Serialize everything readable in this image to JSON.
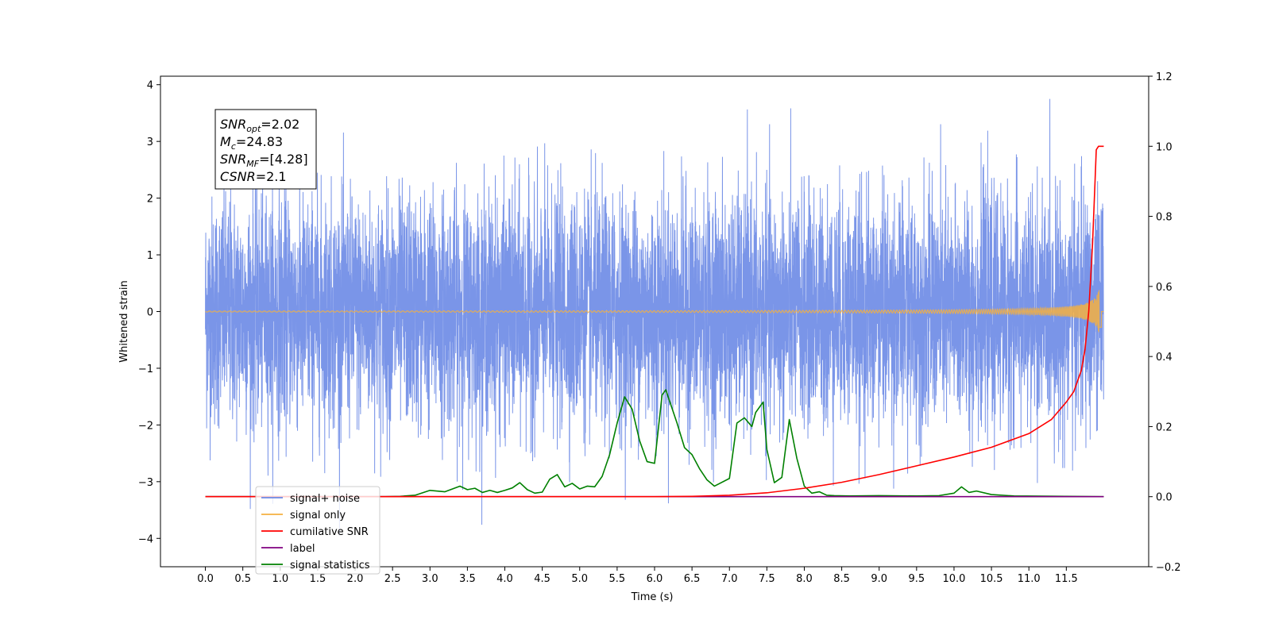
{
  "chart_data": {
    "type": "line",
    "title": "",
    "xlabel": "Time (s)",
    "ylabel": "Whitened strain",
    "y2label": "",
    "xlim": [
      -0.6,
      12.6
    ],
    "ylim": [
      -4.5,
      4.15
    ],
    "y2lim": [
      -0.2,
      1.2
    ],
    "x_ticks": [
      "0.0",
      "0.5",
      "1.0",
      "1.5",
      "2.0",
      "2.5",
      "3.0",
      "3.5",
      "4.0",
      "4.5",
      "5.0",
      "5.5",
      "6.0",
      "6.5",
      "7.0",
      "7.5",
      "8.0",
      "8.5",
      "9.0",
      "9.5",
      "10.0",
      "10.5",
      "11.0",
      "11.5"
    ],
    "y_ticks": [
      "−4",
      "−3",
      "−2",
      "−1",
      "0",
      "1",
      "2",
      "3",
      "4"
    ],
    "y2_ticks": [
      "−0.2",
      "0.0",
      "0.2",
      "0.4",
      "0.6",
      "0.8",
      "1.0",
      "1.2"
    ],
    "grid": false,
    "legend_position": "lower-left",
    "colors": {
      "signal_noise": "#6b8ae6",
      "signal_only": "#f5b041",
      "cumulative_snr": "#ff0000",
      "label": "#800080",
      "signal_statistics": "#008000"
    },
    "legend": [
      {
        "label": "signal+ noise",
        "color": "#6b8ae6"
      },
      {
        "label": "signal only",
        "color": "#f5b041"
      },
      {
        "label": "cumilative SNR",
        "color": "#ff0000"
      },
      {
        "label": "label",
        "color": "#800080"
      },
      {
        "label": "signal statistics",
        "color": "#008000"
      }
    ],
    "annotation": {
      "lines": [
        {
          "symbol": "SNR",
          "sub": "opt",
          "text": "=2.02"
        },
        {
          "symbol": "M",
          "sub": "c",
          "text": "=24.83"
        },
        {
          "symbol": "SNR",
          "sub": "MF",
          "text": "=[4.28]"
        },
        {
          "symbol": "CSNR",
          "sub": "",
          "text": "=2.1"
        }
      ]
    },
    "series": [
      {
        "name": "signal+ noise",
        "axis": "left",
        "x_range": [
          0,
          12
        ],
        "amplitude_sigma": 1.0,
        "max": 3.75,
        "min": -3.95
      },
      {
        "name": "signal only",
        "axis": "left",
        "x_range": [
          0,
          12
        ],
        "peak_time": 11.95,
        "peak_amplitude": 0.45
      },
      {
        "name": "cumilative SNR",
        "axis": "right",
        "x": [
          0,
          6.0,
          6.5,
          7.0,
          7.5,
          8.0,
          8.5,
          9.0,
          9.5,
          10.0,
          10.5,
          11.0,
          11.3,
          11.5,
          11.6,
          11.7,
          11.75,
          11.8,
          11.85,
          11.88,
          11.9,
          11.93,
          12.0
        ],
        "values": [
          0,
          0,
          0.001,
          0.004,
          0.011,
          0.024,
          0.041,
          0.063,
          0.088,
          0.113,
          0.141,
          0.18,
          0.22,
          0.27,
          0.3,
          0.36,
          0.42,
          0.53,
          0.72,
          0.88,
          0.99,
          1.0,
          1.0
        ]
      },
      {
        "name": "label",
        "axis": "right",
        "x": [
          0,
          12
        ],
        "values": [
          0,
          0
        ]
      },
      {
        "name": "signal statistics",
        "axis": "right",
        "x": [
          0,
          2.4,
          2.6,
          2.8,
          3.0,
          3.1,
          3.2,
          3.3,
          3.4,
          3.5,
          3.6,
          3.7,
          3.8,
          3.9,
          4.0,
          4.1,
          4.2,
          4.3,
          4.4,
          4.5,
          4.6,
          4.7,
          4.8,
          4.9,
          5.0,
          5.1,
          5.2,
          5.3,
          5.4,
          5.5,
          5.6,
          5.7,
          5.8,
          5.9,
          6.0,
          6.1,
          6.15,
          6.3,
          6.4,
          6.5,
          6.6,
          6.7,
          6.8,
          7.0,
          7.1,
          7.2,
          7.3,
          7.35,
          7.45,
          7.5,
          7.6,
          7.7,
          7.8,
          7.9,
          8.0,
          8.1,
          8.2,
          8.3,
          8.4,
          8.6,
          9.0,
          9.5,
          9.8,
          10.0,
          10.1,
          10.2,
          10.3,
          10.5,
          10.8,
          12.0
        ],
        "values": [
          0,
          0,
          0.001,
          0.004,
          0.018,
          0.016,
          0.014,
          0.022,
          0.03,
          0.02,
          0.024,
          0.012,
          0.018,
          0.012,
          0.018,
          0.025,
          0.04,
          0.02,
          0.01,
          0.013,
          0.05,
          0.063,
          0.028,
          0.038,
          0.022,
          0.03,
          0.028,
          0.058,
          0.12,
          0.21,
          0.285,
          0.25,
          0.16,
          0.1,
          0.095,
          0.29,
          0.305,
          0.21,
          0.14,
          0.12,
          0.08,
          0.048,
          0.03,
          0.052,
          0.21,
          0.225,
          0.2,
          0.24,
          0.27,
          0.135,
          0.04,
          0.055,
          0.22,
          0.11,
          0.03,
          0.01,
          0.014,
          0.004,
          0.003,
          0.002,
          0.003,
          0.002,
          0.003,
          0.01,
          0.028,
          0.012,
          0.016,
          0.006,
          0.002,
          0
        ]
      }
    ]
  }
}
